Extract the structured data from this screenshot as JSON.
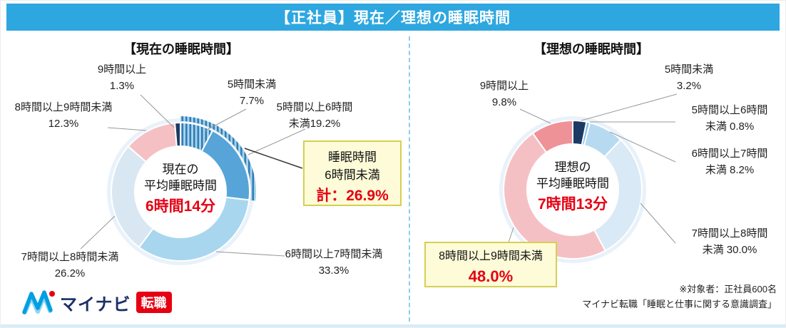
{
  "header": {
    "title": "【正社員】現在／理想の睡眠時間"
  },
  "accent_colors": {
    "header_blue": "#2ea7e0",
    "value_red": "#e60012",
    "callout_bg": "#fdfbd8",
    "callout_border": "#d6cf52",
    "navy": "#1c3a63",
    "salmon": "#f5c0c4"
  },
  "chart_data": [
    {
      "type": "pie",
      "subtype": "donut",
      "units": "%",
      "title": "【現在の睡眠時間】",
      "center_label": {
        "line1": "現在の",
        "line2": "平均睡眠時間",
        "value": "6時間14分"
      },
      "segments": [
        {
          "label": "5時間未満",
          "value": 7.7,
          "color": "#4a96cc",
          "pattern": "stripes",
          "hatch_band": true
        },
        {
          "label": "5時間以上6時間未満",
          "value": 19.2,
          "color": "#57a5d8",
          "hatch_band": true
        },
        {
          "label": "6時間以上7時間未満",
          "value": 33.3,
          "color": "#a9d6ef"
        },
        {
          "label": "7時間以上8時間未満",
          "value": 26.2,
          "color": "#d9e7f3"
        },
        {
          "label": "8時間以上9時間未満",
          "value": 12.3,
          "color": "#f5c0c4"
        },
        {
          "label": "9時間以上",
          "value": 1.3,
          "color": "#1c3a63"
        }
      ],
      "annotations": [
        {
          "line1": "5時間未満",
          "line2": "7.7%"
        },
        {
          "line1": "5時間以上6時間",
          "line2": "未満19.2%"
        },
        {
          "line1": "6時間以上7時間未満",
          "line2": "33.3%"
        },
        {
          "line1": "7時間以上8時間未満",
          "line2": "26.2%"
        },
        {
          "line1": "8時間以上9時間未満",
          "line2": "12.3%"
        },
        {
          "line1": "9時間以上",
          "line2": "1.3%"
        }
      ],
      "callout": {
        "line1": "睡眠時間",
        "line2": "6時間未満",
        "value": "計：26.9%"
      }
    },
    {
      "type": "pie",
      "subtype": "donut",
      "units": "%",
      "title": "【理想の睡眠時間】",
      "center_label": {
        "line1": "理想の",
        "line2": "平均睡眠時間",
        "value": "7時間13分"
      },
      "segments": [
        {
          "label": "5時間未満",
          "value": 3.2,
          "color": "#1c3a63"
        },
        {
          "label": "5時間以上6時間未満",
          "value": 0.8,
          "color": "#7cc0e6"
        },
        {
          "label": "6時間以上7時間未満",
          "value": 8.2,
          "color": "#b7daf1"
        },
        {
          "label": "7時間以上8時間未満",
          "value": 30.0,
          "color": "#d9e9f5"
        },
        {
          "label": "8時間以上9時間未満",
          "value": 48.0,
          "color": "#f5c0c4"
        },
        {
          "label": "9時間以上",
          "value": 9.8,
          "color": "#ef9298"
        }
      ],
      "annotations": [
        {
          "line1": "5時間未満",
          "line2": "3.2%"
        },
        {
          "line1": "5時間以上6時間",
          "line2": "未満 0.8%"
        },
        {
          "line1": "6時間以上7時間",
          "line2": "未満 8.2%"
        },
        {
          "line1": "7時間以上8時間",
          "line2": "未満 30.0%"
        },
        {
          "line1": "9時間以上",
          "line2": "9.8%"
        }
      ],
      "callout": {
        "line1": "8時間以上9時間未満",
        "value": "48.0%"
      }
    }
  ],
  "footer": {
    "logo": {
      "brand": "マイナビ",
      "badge": "転職"
    },
    "note_line1": "※対象者：正社員600名",
    "note_line2": "マイナビ転職「睡眠と仕事に関する意識調査」"
  }
}
